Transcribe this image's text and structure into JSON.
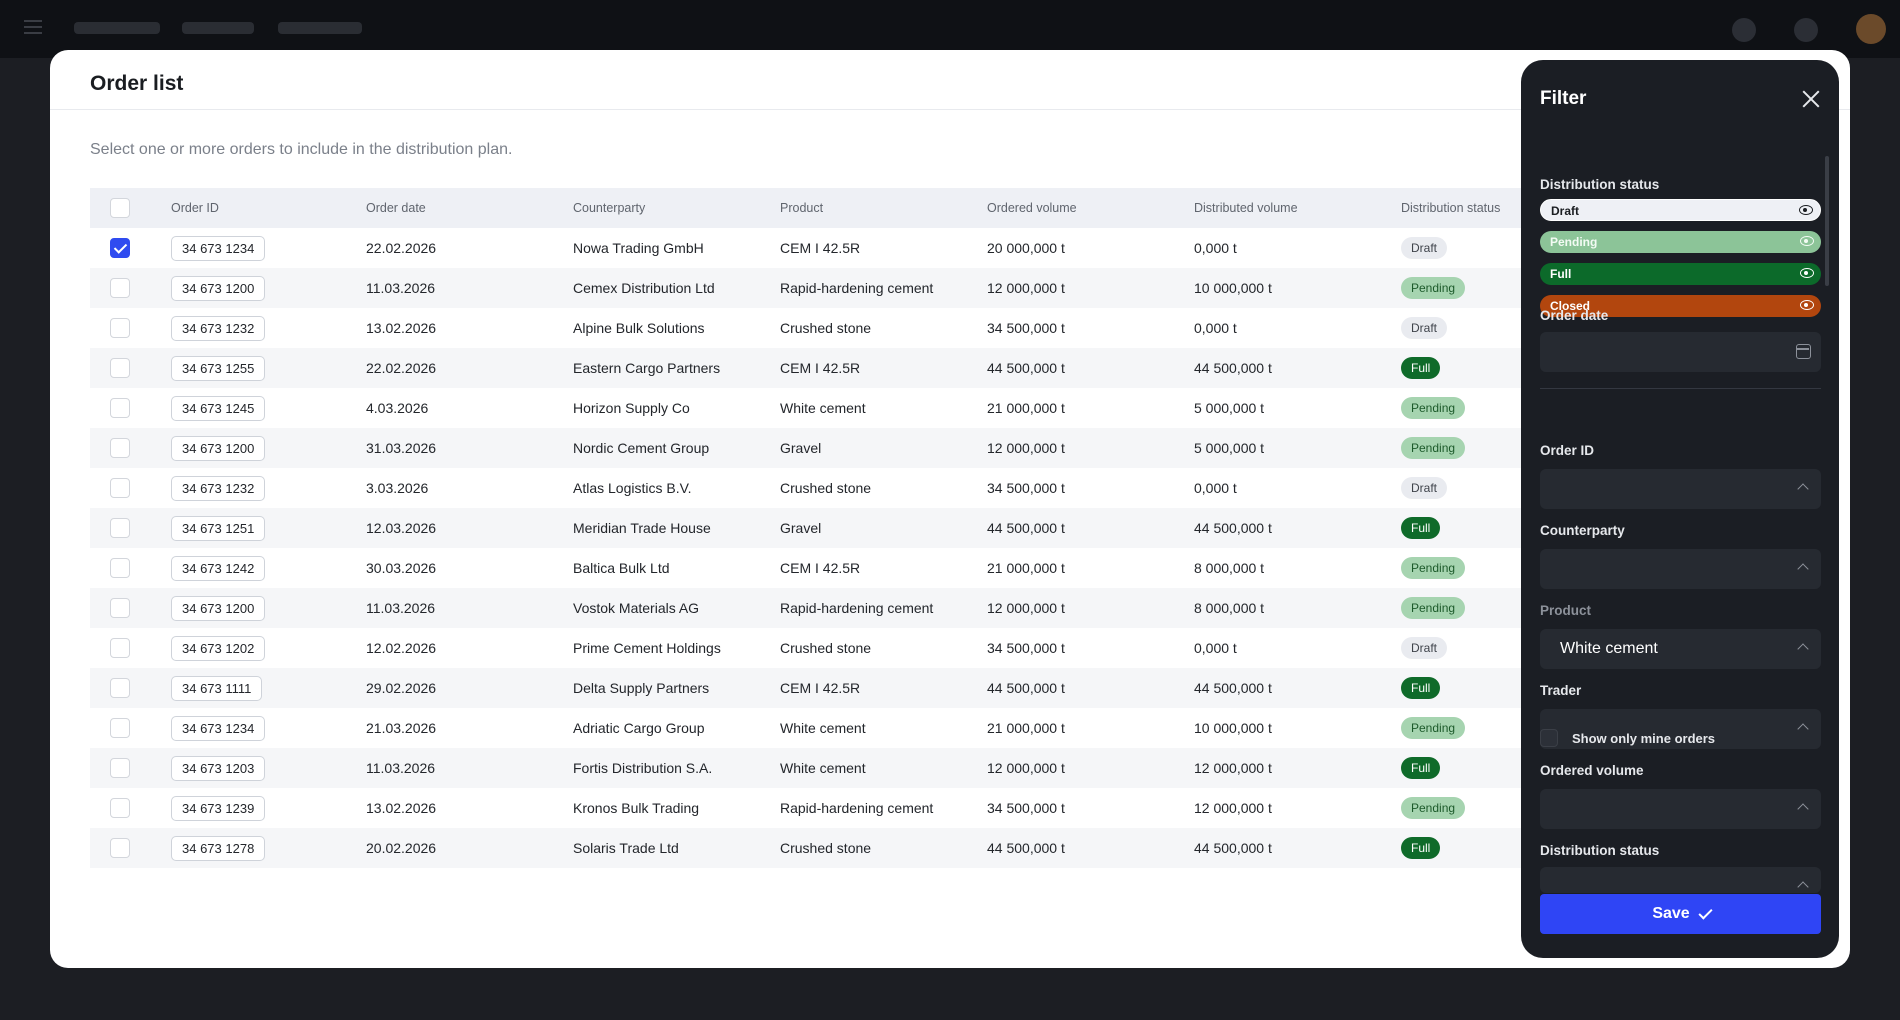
{
  "colors": {
    "accent": "#2f45f5",
    "draft": "#e9ebf0",
    "pending": "#a6d4b0",
    "full": "#0f6b2a",
    "closed": "#b2460e",
    "panel": "#1b1e24"
  },
  "modal": {
    "title": "Order list",
    "subtitle": "Select one or more orders to include in the distribution plan."
  },
  "table": {
    "headers": {
      "order_id": "Order ID",
      "order_date": "Order date",
      "counterparty": "Counterparty",
      "product": "Product",
      "ordered_volume": "Ordered volume",
      "distributed_volume": "Distributed volume",
      "distribution_status": "Distribution status"
    },
    "rows": [
      {
        "checked": true,
        "id": "34 673 1234",
        "date": "22.02.2026",
        "counterparty": "Nowa Trading GmbH",
        "product": "CEM I 42.5R",
        "ordered": "20 000,000 t",
        "distributed": "0,000 t",
        "status": "Draft"
      },
      {
        "checked": false,
        "id": "34 673 1200",
        "date": "11.03.2026",
        "counterparty": "Cemex Distribution Ltd",
        "product": "Rapid-hardening cement",
        "ordered": "12 000,000 t",
        "distributed": "10 000,000 t",
        "status": "Pending"
      },
      {
        "checked": false,
        "id": "34 673 1232",
        "date": "13.02.2026",
        "counterparty": "Alpine Bulk Solutions",
        "product": "Crushed stone",
        "ordered": "34 500,000 t",
        "distributed": "0,000 t",
        "status": "Draft"
      },
      {
        "checked": false,
        "id": "34 673 1255",
        "date": "22.02.2026",
        "counterparty": "Eastern Cargo Partners",
        "product": "CEM I 42.5R",
        "ordered": "44 500,000 t",
        "distributed": "44 500,000 t",
        "status": "Full"
      },
      {
        "checked": false,
        "id": "34 673 1245",
        "date": "4.03.2026",
        "counterparty": "Horizon Supply Co",
        "product": "White cement",
        "ordered": "21 000,000 t",
        "distributed": "5 000,000 t",
        "status": "Pending"
      },
      {
        "checked": false,
        "id": "34 673 1200",
        "date": "31.03.2026",
        "counterparty": "Nordic Cement Group",
        "product": "Gravel",
        "ordered": "12 000,000 t",
        "distributed": "5 000,000 t",
        "status": "Pending"
      },
      {
        "checked": false,
        "id": "34 673 1232",
        "date": "3.03.2026",
        "counterparty": "Atlas Logistics B.V.",
        "product": "Crushed stone",
        "ordered": "34 500,000 t",
        "distributed": "0,000 t",
        "status": "Draft"
      },
      {
        "checked": false,
        "id": "34 673 1251",
        "date": "12.03.2026",
        "counterparty": "Meridian Trade House",
        "product": "Gravel",
        "ordered": "44 500,000 t",
        "distributed": "44 500,000 t",
        "status": "Full"
      },
      {
        "checked": false,
        "id": "34 673 1242",
        "date": "30.03.2026",
        "counterparty": "Baltica Bulk Ltd",
        "product": "CEM I 42.5R",
        "ordered": "21 000,000 t",
        "distributed": "8 000,000 t",
        "status": "Pending"
      },
      {
        "checked": false,
        "id": "34 673 1200",
        "date": "11.03.2026",
        "counterparty": "Vostok Materials AG",
        "product": "Rapid-hardening cement",
        "ordered": "12 000,000 t",
        "distributed": "8 000,000 t",
        "status": "Pending"
      },
      {
        "checked": false,
        "id": "34 673 1202",
        "date": "12.02.2026",
        "counterparty": "Prime Cement Holdings",
        "product": "Crushed stone",
        "ordered": "34 500,000 t",
        "distributed": "0,000 t",
        "status": "Draft"
      },
      {
        "checked": false,
        "id": "34 673 1111",
        "date": "29.02.2026",
        "counterparty": "Delta Supply Partners",
        "product": "CEM I 42.5R",
        "ordered": "44 500,000 t",
        "distributed": "44 500,000 t",
        "status": "Full"
      },
      {
        "checked": false,
        "id": "34 673 1234",
        "date": "21.03.2026",
        "counterparty": "Adriatic Cargo Group",
        "product": "White cement",
        "ordered": "21 000,000 t",
        "distributed": "10 000,000 t",
        "status": "Pending"
      },
      {
        "checked": false,
        "id": "34 673 1203",
        "date": "11.03.2026",
        "counterparty": "Fortis Distribution S.A.",
        "product": "White cement",
        "ordered": "12 000,000 t",
        "distributed": "12 000,000 t",
        "status": "Full"
      },
      {
        "checked": false,
        "id": "34 673 1239",
        "date": "13.02.2026",
        "counterparty": "Kronos Bulk Trading",
        "product": "Rapid-hardening cement",
        "ordered": "34 500,000 t",
        "distributed": "12 000,000 t",
        "status": "Pending"
      },
      {
        "checked": false,
        "id": "34 673 1278",
        "date": "20.02.2026",
        "counterparty": "Solaris Trade Ltd",
        "product": "Crushed stone",
        "ordered": "44 500,000 t",
        "distributed": "44 500,000 t",
        "status": "Full"
      }
    ]
  },
  "filter": {
    "title": "Filter",
    "distribution_status_label": "Distribution status",
    "statuses": [
      "Draft",
      "Pending",
      "Full",
      "Closed"
    ],
    "order_date_label": "Order date",
    "order_id_label": "Order ID",
    "counterparty_label": "Counterparty",
    "product_label": "Product",
    "product_value": "White cement",
    "trader_label": "Trader",
    "show_mine_label": "Show only mine orders",
    "ordered_volume_label": "Ordered volume",
    "distribution_status_label_2": "Distribution status",
    "save_label": "Save"
  },
  "icons": {
    "close": "close-icon",
    "eye": "eye-icon",
    "calendar": "calendar-icon",
    "chevron": "chevron-up-icon",
    "check": "check-icon"
  }
}
